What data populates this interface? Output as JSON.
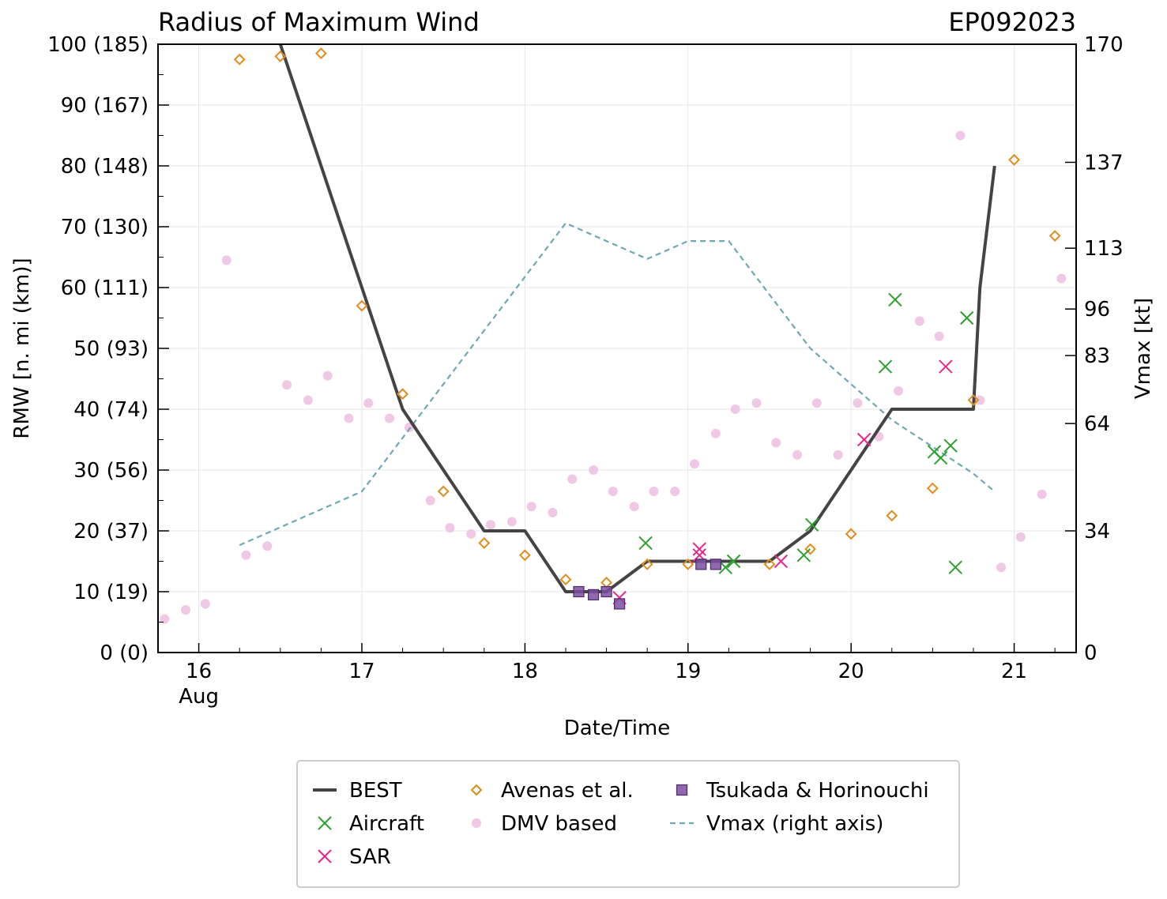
{
  "chart_data": {
    "type": "scatter",
    "title": "Radius of Maximum Wind",
    "storm_id": "EP092023",
    "xlabel": "Date/Time",
    "ylabel": "RMW [n. mi (km)]",
    "y2label": "Vmax [kt]",
    "xlim": [
      15.75,
      21.38
    ],
    "ylim": [
      0,
      100
    ],
    "y2lim": [
      0,
      170
    ],
    "x_ticks": [
      {
        "value": 16,
        "label": "16",
        "sublabel": "Aug"
      },
      {
        "value": 17,
        "label": "17",
        "sublabel": ""
      },
      {
        "value": 18,
        "label": "18",
        "sublabel": ""
      },
      {
        "value": 19,
        "label": "19",
        "sublabel": ""
      },
      {
        "value": 20,
        "label": "20",
        "sublabel": ""
      },
      {
        "value": 21,
        "label": "21",
        "sublabel": ""
      }
    ],
    "y_ticks": [
      {
        "value": 0,
        "label": "0 (0)"
      },
      {
        "value": 10,
        "label": "10 (19)"
      },
      {
        "value": 20,
        "label": "20 (37)"
      },
      {
        "value": 30,
        "label": "30 (56)"
      },
      {
        "value": 40,
        "label": "40 (74)"
      },
      {
        "value": 50,
        "label": "50 (93)"
      },
      {
        "value": 60,
        "label": "60 (111)"
      },
      {
        "value": 70,
        "label": "70 (130)"
      },
      {
        "value": 80,
        "label": "80 (148)"
      },
      {
        "value": 90,
        "label": "90 (167)"
      },
      {
        "value": 100,
        "label": "100 (185)"
      }
    ],
    "y2_ticks": [
      {
        "value": 0,
        "label": "0"
      },
      {
        "value": 34,
        "label": "34"
      },
      {
        "value": 64,
        "label": "64"
      },
      {
        "value": 83,
        "label": "83"
      },
      {
        "value": 96,
        "label": "96"
      },
      {
        "value": 113,
        "label": "113"
      },
      {
        "value": 137,
        "label": "137"
      },
      {
        "value": 170,
        "label": "170"
      }
    ],
    "series": [
      {
        "name": "BEST",
        "kind": "line",
        "color": "#444444",
        "x": [
          16.5,
          17.0,
          17.25,
          17.75,
          18.0,
          18.25,
          18.5,
          18.75,
          19.0,
          19.25,
          19.5,
          19.75,
          20.0,
          20.25,
          20.5,
          20.75,
          20.79,
          20.88
        ],
        "y": [
          100,
          60,
          40,
          20,
          20,
          10,
          10,
          15,
          15,
          15,
          15,
          20,
          30,
          40,
          40,
          40,
          60,
          80
        ]
      },
      {
        "name": "Aircraft",
        "kind": "x",
        "color": "#2ca02c",
        "x": [
          18.74,
          19.23,
          19.28,
          19.71,
          19.76,
          20.21,
          20.27,
          20.51,
          20.55,
          20.61,
          20.64,
          20.71
        ],
        "y": [
          18,
          14,
          15,
          16,
          21,
          47,
          58,
          33,
          32,
          34,
          14,
          55
        ]
      },
      {
        "name": "SAR",
        "kind": "x",
        "color": "#e7298a",
        "x": [
          18.58,
          19.07,
          19.07,
          19.57,
          20.08,
          20.58
        ],
        "y": [
          9,
          17,
          16,
          15,
          35,
          47
        ]
      },
      {
        "name": "Avenas et al.",
        "kind": "diamond",
        "color": "#e08c1c",
        "x": [
          16.25,
          16.5,
          16.75,
          17.0,
          17.25,
          17.5,
          17.75,
          18.0,
          18.25,
          18.5,
          18.75,
          19.0,
          19.5,
          19.75,
          20.0,
          20.25,
          20.5,
          20.75,
          21.0,
          21.25
        ],
        "y": [
          97.5,
          98,
          98.5,
          57,
          42.5,
          26.5,
          18,
          16,
          12,
          11.5,
          14.5,
          14.5,
          14.5,
          17,
          19.5,
          22.5,
          27,
          41.5,
          81,
          68.5
        ]
      },
      {
        "name": "DMV based",
        "kind": "circle",
        "color": "#f0c8e6",
        "x": [
          15.79,
          15.92,
          16.04,
          16.17,
          16.29,
          16.42,
          16.54,
          16.67,
          16.79,
          16.92,
          17.04,
          17.17,
          17.29,
          17.42,
          17.54,
          17.67,
          17.79,
          17.92,
          18.04,
          18.17,
          18.29,
          18.42,
          18.54,
          18.67,
          18.79,
          18.92,
          19.04,
          19.17,
          19.29,
          19.42,
          19.54,
          19.67,
          19.79,
          19.92,
          20.04,
          20.17,
          20.29,
          20.42,
          20.54,
          20.67,
          20.79,
          20.92,
          21.04,
          21.17,
          21.29
        ],
        "y": [
          5.5,
          7,
          8,
          64.5,
          16,
          17.5,
          44,
          41.5,
          45.5,
          38.5,
          41,
          38.5,
          37,
          25,
          20.5,
          19.5,
          21,
          21.5,
          24,
          23,
          28.5,
          30,
          26.5,
          24,
          26.5,
          26.5,
          31,
          36,
          40,
          41,
          34.5,
          32.5,
          41,
          32.5,
          41,
          35.5,
          43,
          54.5,
          52,
          85,
          41.5,
          14,
          19,
          26,
          61.5
        ]
      },
      {
        "name": "Tsukada & Horinouchi",
        "kind": "square",
        "color": "#7b4ea0",
        "x": [
          18.33,
          18.42,
          18.5,
          18.58,
          19.08,
          19.17
        ],
        "y": [
          10,
          9.5,
          10,
          8,
          14.5,
          14.5
        ]
      },
      {
        "name": "Vmax (right axis)",
        "kind": "dashed",
        "axis": "right",
        "color": "#6fa8b0",
        "x": [
          16.25,
          17.0,
          17.25,
          18.0,
          18.25,
          18.75,
          19.0,
          19.25,
          19.75,
          20.25,
          20.75,
          20.88
        ],
        "y": [
          30,
          45,
          60,
          105,
          120,
          110,
          115,
          115,
          85,
          65,
          50,
          45
        ]
      }
    ],
    "legend": {
      "placement": "bottom",
      "entries": [
        "BEST",
        "Avenas et al.",
        "Tsukada & Horinouchi",
        "Aircraft",
        "DMV based",
        "Vmax (right axis)",
        "SAR"
      ]
    }
  }
}
